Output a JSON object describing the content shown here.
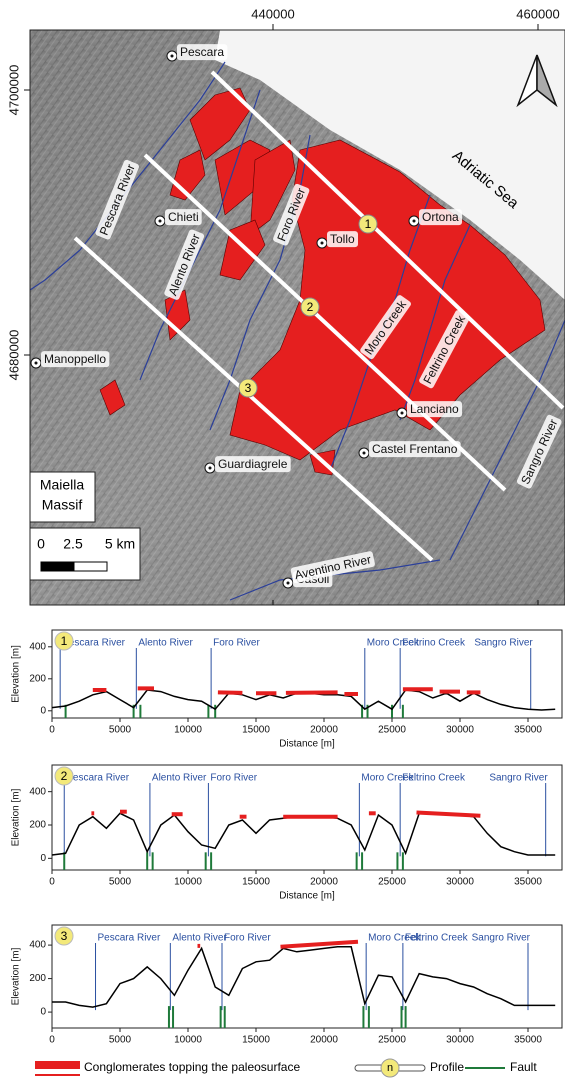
{
  "map": {
    "xticks": [
      440000,
      460000
    ],
    "yticks": [
      4700000,
      4680000
    ],
    "places": [
      "Pescara",
      "Chieti",
      "Tollo",
      "Ortona",
      "Manoppello",
      "Lanciano",
      "Castel Frentano",
      "Guardiagrele",
      "Casoli"
    ],
    "rivers": [
      "Pescara River",
      "Alento River",
      "Foro River",
      "Moro Creek",
      "Feltrino Creek",
      "Sangro River",
      "Aventino River"
    ],
    "sea": "Adriatic Sea",
    "massif": [
      "Maiella",
      "Massif"
    ],
    "scale": [
      "0",
      "2.5",
      "5 km"
    ],
    "profiles": [
      "1",
      "2",
      "3"
    ]
  },
  "chart_data": [
    {
      "type": "line",
      "label": "1",
      "color": "#000000",
      "conglomerate_color": "#e51f1f",
      "xlabel": "Distance [m]",
      "ylabel": "Elevation [m]",
      "xlim": [
        0,
        37500
      ],
      "ylim": [
        -45,
        505
      ],
      "xticks": [
        0,
        5000,
        10000,
        15000,
        20000,
        25000,
        30000,
        35000
      ],
      "yticks": [
        0,
        200,
        400
      ],
      "x": [
        0,
        1000,
        2000,
        3000,
        4000,
        5000,
        6000,
        7000,
        8000,
        9000,
        10000,
        11000,
        12000,
        13000,
        14000,
        15000,
        16000,
        17000,
        18000,
        19000,
        20000,
        21000,
        22000,
        23000,
        24000,
        25000,
        26000,
        27000,
        28000,
        29000,
        30000,
        31000,
        32000,
        33000,
        34000,
        35000,
        36000,
        37000
      ],
      "values": [
        20,
        30,
        60,
        100,
        120,
        70,
        20,
        130,
        120,
        90,
        70,
        60,
        10,
        110,
        100,
        70,
        100,
        80,
        110,
        110,
        100,
        100,
        90,
        10,
        60,
        10,
        130,
        120,
        80,
        110,
        60,
        110,
        70,
        40,
        20,
        10,
        5,
        10
      ],
      "conglomerates": [
        {
          "x": [
            3000,
            4000
          ],
          "values": [
            130,
            130
          ]
        },
        {
          "x": [
            6300,
            7500
          ],
          "values": [
            140,
            140
          ]
        },
        {
          "x": [
            12200,
            14000
          ],
          "values": [
            115,
            112
          ]
        },
        {
          "x": [
            15000,
            16500
          ],
          "values": [
            110,
            110
          ]
        },
        {
          "x": [
            17200,
            21000
          ],
          "values": [
            112,
            115
          ]
        },
        {
          "x": [
            21500,
            22500
          ],
          "values": [
            105,
            105
          ]
        },
        {
          "x": [
            25800,
            28000
          ],
          "values": [
            135,
            135
          ]
        },
        {
          "x": [
            28500,
            30000
          ],
          "values": [
            120,
            120
          ]
        },
        {
          "x": [
            30500,
            31500
          ],
          "values": [
            115,
            115
          ]
        }
      ],
      "rivers": [
        {
          "label": "Pescara River",
          "x": 600
        },
        {
          "label": "Alento River",
          "x": 6200
        },
        {
          "label": "Foro River",
          "x": 11700
        },
        {
          "label": "Moro Creek",
          "x": 23000
        },
        {
          "label": "Feltrino Creek",
          "x": 25600
        },
        {
          "label": "Sangro River",
          "x": 35200
        }
      ],
      "faults": [
        1000,
        6000,
        6500,
        11500,
        12000,
        22800,
        23200,
        25000,
        25800
      ]
    },
    {
      "type": "line",
      "label": "2",
      "color": "#000000",
      "conglomerate_color": "#e51f1f",
      "xlabel": "Distance [m]",
      "ylabel": "Elevation [m]",
      "xlim": [
        0,
        37500
      ],
      "ylim": [
        -70,
        560
      ],
      "xticks": [
        0,
        5000,
        10000,
        15000,
        20000,
        25000,
        30000,
        35000
      ],
      "yticks": [
        0,
        200,
        400
      ],
      "x": [
        0,
        1000,
        2000,
        3000,
        4000,
        5000,
        6000,
        7000,
        8000,
        9000,
        10000,
        11000,
        12000,
        13000,
        14000,
        15000,
        16000,
        17000,
        18000,
        19000,
        20000,
        21000,
        22000,
        23000,
        24000,
        25000,
        26000,
        27000,
        28000,
        29000,
        30000,
        31000,
        32000,
        33000,
        34000,
        35000,
        36000,
        37000
      ],
      "values": [
        20,
        30,
        200,
        250,
        180,
        270,
        230,
        40,
        200,
        260,
        160,
        80,
        60,
        200,
        230,
        150,
        230,
        240,
        250,
        250,
        250,
        240,
        200,
        50,
        260,
        200,
        30,
        270,
        270,
        260,
        260,
        250,
        150,
        70,
        40,
        20,
        20,
        20
      ],
      "conglomerates": [
        {
          "x": [
            2900,
            3100
          ],
          "values": [
            270,
            270
          ]
        },
        {
          "x": [
            5000,
            5500
          ],
          "values": [
            280,
            280
          ]
        },
        {
          "x": [
            8800,
            9600
          ],
          "values": [
            265,
            265
          ]
        },
        {
          "x": [
            13800,
            14300
          ],
          "values": [
            250,
            250
          ]
        },
        {
          "x": [
            17000,
            21000
          ],
          "values": [
            250,
            250
          ]
        },
        {
          "x": [
            23300,
            23800
          ],
          "values": [
            270,
            270
          ]
        },
        {
          "x": [
            26800,
            31500
          ],
          "values": [
            275,
            255
          ]
        }
      ],
      "rivers": [
        {
          "label": "Pescara River",
          "x": 900
        },
        {
          "label": "Alento River",
          "x": 7200
        },
        {
          "label": "Foro River",
          "x": 11500
        },
        {
          "label": "Moro Creek",
          "x": 22600
        },
        {
          "label": "Feltrino Creek",
          "x": 25600
        },
        {
          "label": "Sangro River",
          "x": 36300
        }
      ],
      "faults": [
        900,
        7000,
        7400,
        11300,
        11700,
        22400,
        22800,
        25400,
        25800
      ]
    },
    {
      "type": "line",
      "label": "3",
      "color": "#000000",
      "conglomerate_color": "#e51f1f",
      "ylabel": "Elevation [m]",
      "xlim": [
        0,
        37500
      ],
      "ylim": [
        -95,
        520
      ],
      "xticks": [
        0,
        5000,
        10000,
        15000,
        20000,
        25000,
        30000,
        35000
      ],
      "yticks": [
        0,
        200,
        400
      ],
      "x": [
        0,
        1000,
        2000,
        3000,
        4000,
        5000,
        6000,
        7000,
        8000,
        9000,
        10000,
        11000,
        12000,
        13000,
        14000,
        15000,
        16000,
        17000,
        18000,
        19000,
        20000,
        21000,
        22000,
        23000,
        24000,
        25000,
        26000,
        27000,
        28000,
        29000,
        30000,
        31000,
        32000,
        33000,
        34000,
        35000,
        36000,
        37000
      ],
      "values": [
        60,
        60,
        40,
        30,
        50,
        170,
        200,
        270,
        200,
        100,
        250,
        380,
        150,
        100,
        260,
        300,
        310,
        380,
        360,
        370,
        380,
        390,
        390,
        50,
        220,
        210,
        60,
        230,
        210,
        200,
        170,
        150,
        110,
        80,
        40,
        40,
        40,
        40
      ],
      "conglomerates": [
        {
          "x": [
            10700,
            10900
          ],
          "values": [
            395,
            395
          ]
        },
        {
          "x": [
            16800,
            22500
          ],
          "values": [
            390,
            420
          ]
        }
      ],
      "rivers": [
        {
          "label": "Pescara River",
          "x": 3200
        },
        {
          "label": "Alento River",
          "x": 8700
        },
        {
          "label": "Foro River",
          "x": 12500
        },
        {
          "label": "Moro Creek",
          "x": 23100
        },
        {
          "label": "Feltrino Creek",
          "x": 25800
        },
        {
          "label": "Sangro River",
          "x": 35000
        }
      ],
      "faults": [
        8600,
        8900,
        12400,
        12700,
        22900,
        23300,
        25700,
        26000
      ]
    }
  ],
  "legend": {
    "conglomerates": "Conglomerates topping the paleosurface",
    "profile_symbol": "n",
    "profile": "Profile",
    "fault": "Fault"
  }
}
